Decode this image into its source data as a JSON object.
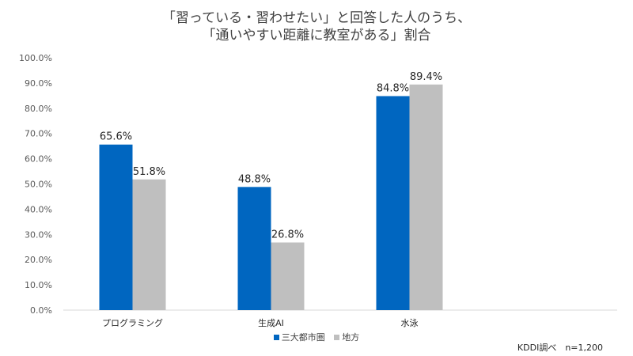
{
  "chart_data": {
    "type": "bar",
    "title": [
      "「習っている・習わせたい」と回答した人のうち、",
      "「通いやすい距離に教室がある」割合"
    ],
    "categories": [
      "プログラミング",
      "生成AI",
      "水泳"
    ],
    "series": [
      {
        "name": "三大都市圏",
        "color": "#0066c0",
        "values": [
          65.6,
          48.8,
          84.8
        ]
      },
      {
        "name": "地方",
        "color": "#bfbfbf",
        "values": [
          51.8,
          26.8,
          89.4
        ]
      }
    ],
    "data_labels": [
      [
        "65.6%",
        "48.8%",
        "84.8%"
      ],
      [
        "51.8%",
        "26.8%",
        "89.4%"
      ]
    ],
    "yticks": [
      "0.0%",
      "10.0%",
      "20.0%",
      "30.0%",
      "40.0%",
      "50.0%",
      "60.0%",
      "70.0%",
      "80.0%",
      "90.0%",
      "100.0%"
    ],
    "ylim": [
      0,
      100
    ],
    "grid": false,
    "legend": "bottom"
  },
  "note": "KDDI調べ　n=1,200"
}
